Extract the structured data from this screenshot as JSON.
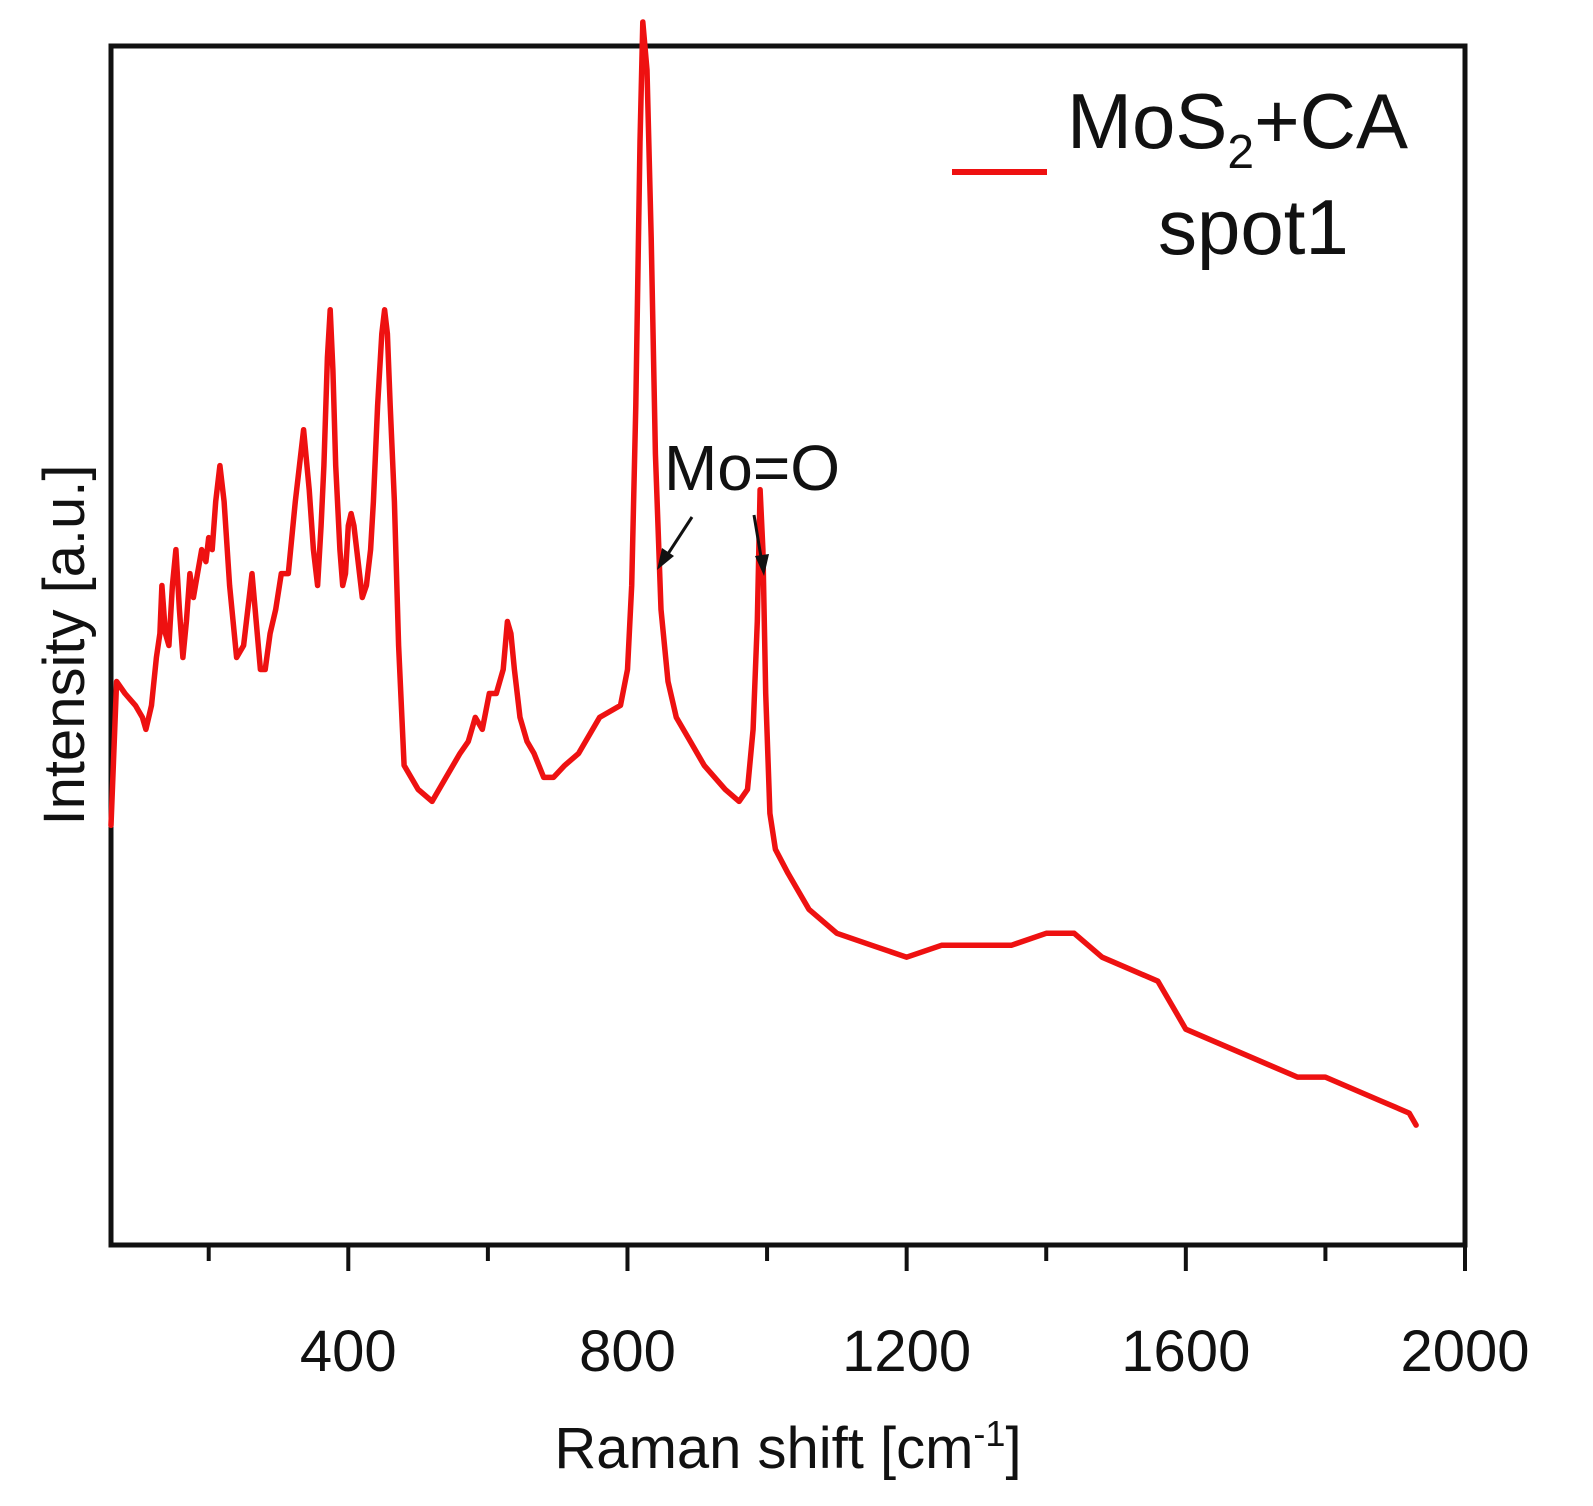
{
  "chart_data": {
    "type": "line",
    "title": "",
    "xlabel": {
      "main": "Raman shift [cm",
      "sup": "-1",
      "close": "]"
    },
    "ylabel": "Intensity [a.u.]",
    "xlim": [
      60,
      2000
    ],
    "ylim": [
      0,
      100
    ],
    "x_ticks_major": [
      400,
      800,
      1200,
      1600,
      2000
    ],
    "x_tick_labels": [
      "400",
      "800",
      "1200",
      "1600",
      "2000"
    ],
    "x_ticks_minor": [
      200,
      600,
      1000,
      1400,
      1800
    ],
    "y_ticks": [],
    "grid": false,
    "legend": {
      "position": "top-right",
      "line1_main": "MoS",
      "line1_sub": "2",
      "line1_rest": "+CA",
      "line2": "spot1"
    },
    "annotations": [
      {
        "text": "Mo=O",
        "arrows_to": [
          830,
          992
        ]
      }
    ],
    "series": [
      {
        "name": "MoS2+CA spot1",
        "color": "#ee1111",
        "x": [
          60,
          68,
          80,
          95,
          105,
          110,
          118,
          125,
          130,
          133,
          138,
          143,
          148,
          153,
          158,
          163,
          168,
          173,
          178,
          184,
          190,
          196,
          200,
          205,
          210,
          216,
          222,
          230,
          240,
          250,
          262,
          274,
          281,
          288,
          296,
          304,
          314,
          324,
          336,
          344,
          350,
          356,
          361,
          365,
          370,
          374,
          378,
          382,
          388,
          392,
          396,
          400,
          404,
          408,
          412,
          416,
          420,
          426,
          432,
          436,
          442,
          448,
          452,
          456,
          460,
          466,
          472,
          480,
          500,
          520,
          540,
          560,
          572,
          582,
          592,
          602,
          612,
          622,
          628,
          633,
          638,
          646,
          656,
          666,
          680,
          694,
          710,
          730,
          760,
          790,
          800,
          806,
          812,
          818,
          822,
          828,
          834,
          840,
          848,
          858,
          870,
          890,
          910,
          940,
          960,
          972,
          980,
          986,
          990,
          994,
          998,
          1004,
          1012,
          1030,
          1060,
          1100,
          1150,
          1200,
          1250,
          1300,
          1350,
          1400,
          1440,
          1480,
          1520,
          1560,
          1580,
          1600,
          1640,
          1680,
          1720,
          1760,
          1800,
          1840,
          1880,
          1920,
          1930
        ],
        "y": [
          35,
          47,
          46,
          45,
          44,
          43,
          45,
          49,
          51,
          55,
          51,
          50,
          55,
          58,
          53,
          49,
          52,
          56,
          54,
          56,
          58,
          57,
          59,
          58,
          62,
          65,
          62,
          55,
          49,
          50,
          56,
          48,
          48,
          51,
          53,
          56,
          56,
          62,
          68,
          63,
          58,
          55,
          60,
          65,
          74,
          78,
          73,
          65,
          58,
          55,
          56,
          60,
          61,
          60,
          58,
          56,
          54,
          55,
          58,
          62,
          70,
          76,
          78,
          76,
          70,
          62,
          50,
          40,
          38,
          37,
          39,
          41,
          42,
          44,
          43,
          46,
          46,
          48,
          52,
          51,
          48,
          44,
          42,
          41,
          39,
          39,
          40,
          41,
          44,
          45,
          48,
          55,
          70,
          92,
          102,
          98,
          84,
          66,
          53,
          47,
          44,
          42,
          40,
          38,
          37,
          38,
          43,
          52,
          63,
          58,
          46,
          36,
          33,
          31,
          28,
          26,
          25,
          24,
          25,
          25,
          25,
          26,
          26,
          24,
          23,
          22,
          20,
          18,
          17,
          16,
          15,
          14,
          14,
          13,
          12,
          11,
          10
        ]
      }
    ]
  }
}
